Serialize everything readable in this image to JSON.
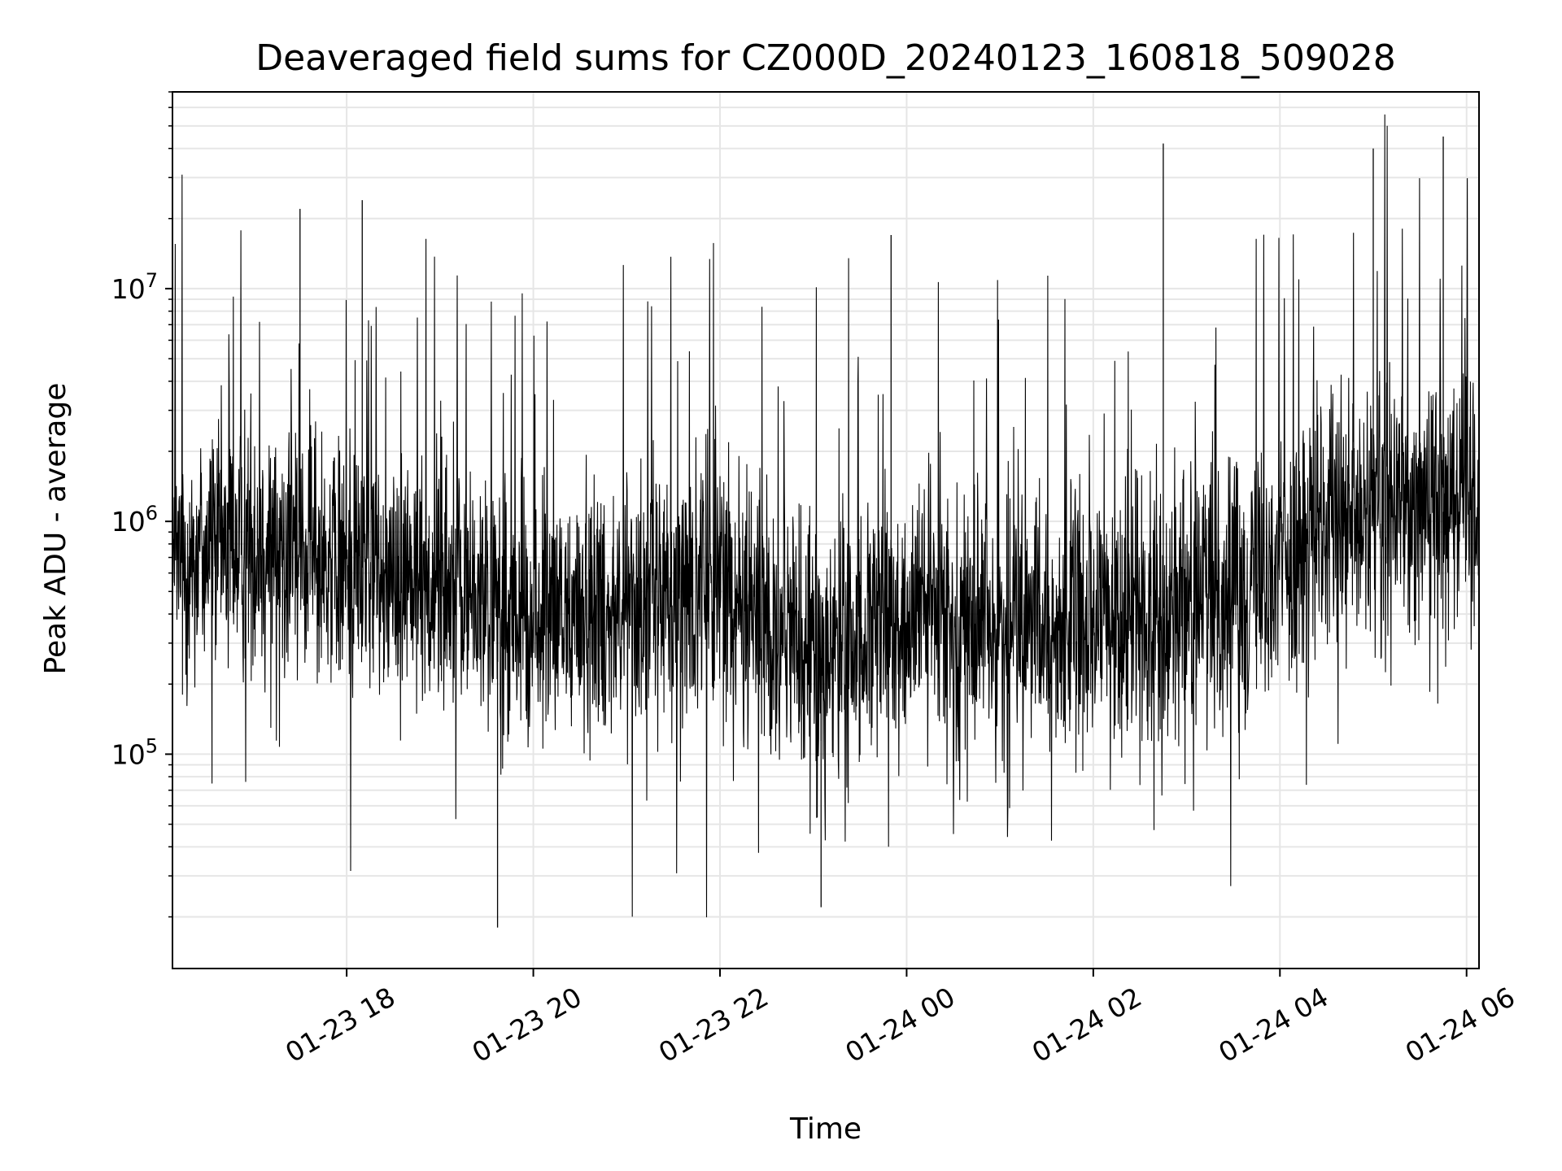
{
  "chart_data": {
    "type": "line",
    "title": "Deaveraged field sums for CZ000D_20240123_160818_509028",
    "xlabel": "Time",
    "ylabel": "Peak ADU - average",
    "yscale": "log",
    "xlim": [
      "2024-01-23 16:08",
      "2024-01-24 06:08"
    ],
    "ylim": [
      12000,
      70000000
    ],
    "x_ticks": [
      {
        "value": "2024-01-23 18:00",
        "label": "01-23 18"
      },
      {
        "value": "2024-01-23 20:00",
        "label": "01-23 20"
      },
      {
        "value": "2024-01-23 22:00",
        "label": "01-23 22"
      },
      {
        "value": "2024-01-24 00:00",
        "label": "01-24 00"
      },
      {
        "value": "2024-01-24 02:00",
        "label": "01-24 02"
      },
      {
        "value": "2024-01-24 04:00",
        "label": "01-24 04"
      },
      {
        "value": "2024-01-24 06:00",
        "label": "01-24 06"
      }
    ],
    "y_ticks": [
      {
        "value": 100000,
        "base": "10",
        "exp": "5"
      },
      {
        "value": 1000000,
        "base": "10",
        "exp": "6"
      },
      {
        "value": 10000000,
        "base": "10",
        "exp": "7"
      }
    ],
    "grid": true,
    "line_color": "#000000",
    "series": [
      {
        "x": [
          "2024-01-23 16:08",
          "2024-01-23 16:30",
          "2024-01-23 17:00",
          "2024-01-23 17:30",
          "2024-01-23 18:00",
          "2024-01-23 18:30",
          "2024-01-23 19:00",
          "2024-01-23 19:30",
          "2024-01-23 20:00",
          "2024-01-23 20:30",
          "2024-01-23 21:00",
          "2024-01-23 21:30",
          "2024-01-23 22:00",
          "2024-01-23 22:30",
          "2024-01-23 23:00",
          "2024-01-23 23:30",
          "2024-01-24 00:00",
          "2024-01-24 00:30",
          "2024-01-24 01:00",
          "2024-01-24 01:30",
          "2024-01-24 02:00",
          "2024-01-24 02:30",
          "2024-01-24 03:00",
          "2024-01-24 03:30",
          "2024-01-24 04:00",
          "2024-01-24 04:30",
          "2024-01-24 05:00",
          "2024-01-24 05:30",
          "2024-01-24 06:00",
          "2024-01-24 06:08"
        ],
        "y": [
          600000,
          800000,
          800000,
          700000,
          650000,
          600000,
          550000,
          450000,
          350000,
          400000,
          450000,
          500000,
          550000,
          380000,
          250000,
          300000,
          400000,
          380000,
          350000,
          330000,
          350000,
          400000,
          450000,
          500000,
          700000,
          900000,
          1100000,
          1300000,
          1500000,
          1400000
        ]
      }
    ],
    "annotated_peaks": [
      {
        "x": "2024-01-23 17:30",
        "y": 22000000
      },
      {
        "x": "2024-01-23 18:10",
        "y": 24000000
      },
      {
        "x": "2024-01-23 23:50",
        "y": 17000000
      },
      {
        "x": "2024-01-24 02:45",
        "y": 42000000
      },
      {
        "x": "2024-01-24 05:00",
        "y": 40000000
      },
      {
        "x": "2024-01-24 05:45",
        "y": 45000000
      },
      {
        "x": "2024-01-23 19:37",
        "y": 18000
      },
      {
        "x": "2024-01-23 23:05",
        "y": 22000
      }
    ]
  }
}
